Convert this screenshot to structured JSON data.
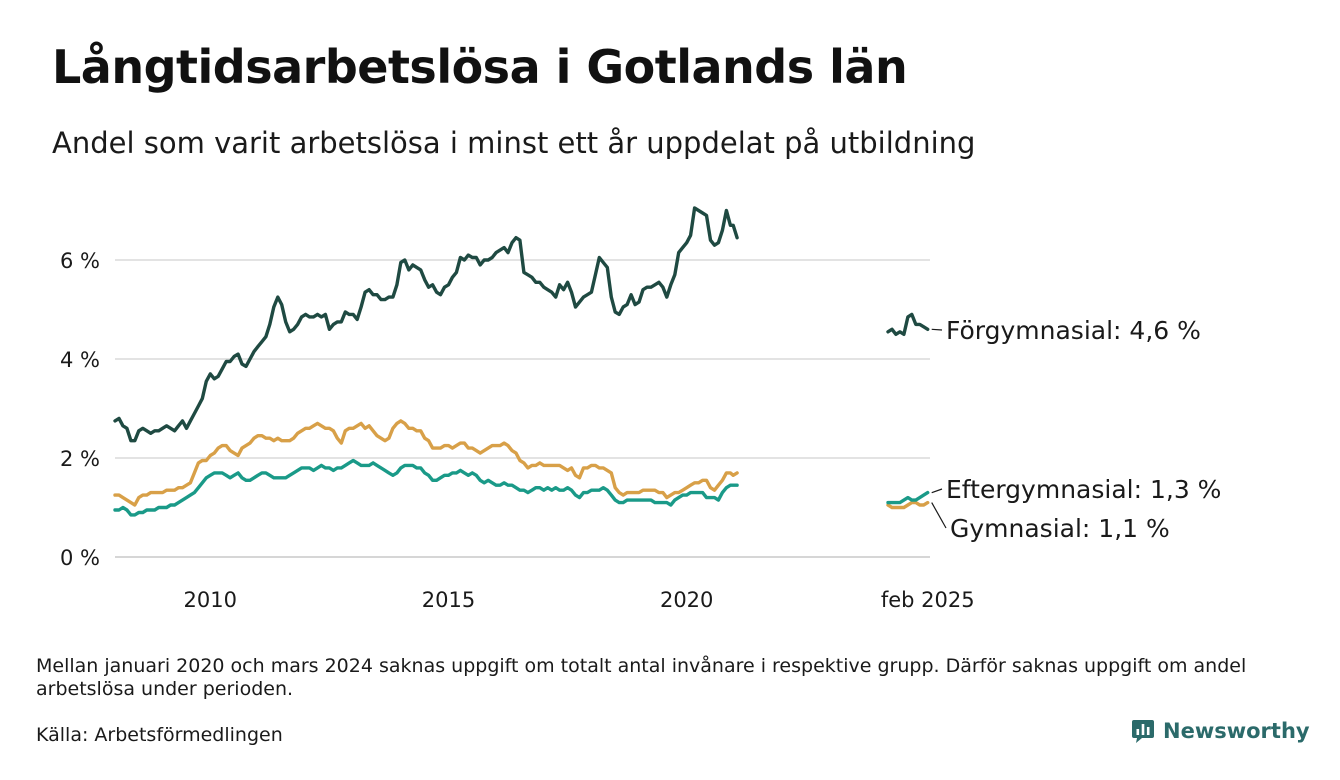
{
  "header": {
    "title": "Långtidsarbetslösa i Gotlands län",
    "subtitle": "Andel som varit arbetslösa i minst ett år uppdelat på utbildning"
  },
  "footer": {
    "note": "Mellan januari 2020 och mars 2024 saknas uppgift om totalt antal invånare i respektive grupp. Därför saknas uppgift om andel arbetslösa under perioden.",
    "source": "Källa: Arbetsförmedlingen",
    "brand": "Newsworthy"
  },
  "chart_data": {
    "type": "line",
    "y_unit": "%",
    "ylim": [
      0,
      7.2
    ],
    "y_ticks": [
      {
        "value": 0,
        "label": "0 %"
      },
      {
        "value": 2,
        "label": "2 %"
      },
      {
        "value": 4,
        "label": "4 %"
      },
      {
        "value": 6,
        "label": "6 %"
      }
    ],
    "x_ticks": [
      {
        "value": "2010-01",
        "label": "2010"
      },
      {
        "value": "2015-01",
        "label": "2015"
      },
      {
        "value": "2020-01",
        "label": "2020"
      },
      {
        "value": "2025-02",
        "label": "feb 2025"
      }
    ],
    "x_axis_segments": [
      {
        "from": "2008-01",
        "to": "2020-12"
      },
      {
        "from": "2024-04",
        "to": "2025-02"
      }
    ],
    "gridlines": true,
    "series": [
      {
        "name": "Förgymnasial",
        "end_label": "Förgymnasial: 4,6 %",
        "color": "#1f4a42",
        "segments": [
          {
            "start": "2008-01",
            "values": [
              2.75,
              2.8,
              2.65,
              2.6,
              2.35,
              2.35,
              2.55,
              2.6,
              2.55,
              2.5,
              2.55,
              2.55,
              2.6,
              2.65,
              2.6,
              2.55,
              2.65,
              2.75,
              2.6,
              2.75,
              2.9,
              3.05,
              3.2,
              3.55,
              3.7,
              3.6,
              3.65,
              3.8,
              3.95,
              3.95,
              4.05,
              4.1,
              3.9,
              3.85,
              4.0,
              4.15,
              4.25,
              4.35,
              4.45,
              4.7,
              5.05,
              5.25,
              5.1,
              4.75,
              4.55,
              4.6,
              4.7,
              4.85,
              4.9,
              4.85,
              4.85,
              4.9,
              4.85,
              4.9,
              4.6,
              4.7,
              4.75,
              4.75,
              4.95,
              4.9,
              4.9,
              4.8,
              5.05,
              5.35,
              5.4,
              5.3,
              5.3,
              5.2,
              5.2,
              5.25,
              5.25,
              5.5,
              5.95,
              6.0,
              5.8,
              5.9,
              5.85,
              5.8,
              5.6,
              5.45,
              5.5,
              5.35,
              5.3,
              5.45,
              5.5,
              5.65,
              5.75,
              6.05,
              6.0,
              6.1,
              6.05,
              6.05,
              5.9,
              6.0,
              6.0,
              6.05,
              6.15,
              6.2,
              6.25,
              6.15,
              6.35,
              6.45,
              6.4,
              5.75,
              5.7,
              5.65,
              5.55,
              5.55,
              5.45,
              5.4,
              5.35,
              5.25,
              5.5,
              5.4,
              5.55,
              5.35,
              5.05,
              5.15,
              5.25,
              5.3,
              5.35,
              5.7,
              6.05,
              5.95,
              5.85,
              5.25,
              4.95,
              4.9,
              5.05,
              5.1,
              5.3,
              5.1,
              5.15,
              5.4,
              5.45,
              5.45,
              5.5,
              5.55,
              5.45,
              5.25,
              5.5,
              5.7,
              6.15,
              6.25,
              6.35,
              6.5,
              7.05,
              7.0,
              6.95,
              6.9,
              6.4,
              6.3,
              6.35,
              6.6,
              7.0,
              6.7,
              6.7,
              6.45
            ]
          },
          {
            "start": "2024-04",
            "values": [
              4.55,
              4.6,
              4.5,
              4.55,
              4.5,
              4.85,
              4.9,
              4.7,
              4.7,
              4.65,
              4.6
            ]
          }
        ]
      },
      {
        "name": "Gymnasial",
        "end_label": "Gymnasial: 1,1 %",
        "color": "#d8a048",
        "segments": [
          {
            "start": "2008-01",
            "values": [
              1.25,
              1.25,
              1.2,
              1.15,
              1.1,
              1.05,
              1.2,
              1.25,
              1.25,
              1.3,
              1.3,
              1.3,
              1.3,
              1.35,
              1.35,
              1.35,
              1.4,
              1.4,
              1.45,
              1.5,
              1.7,
              1.9,
              1.95,
              1.95,
              2.05,
              2.1,
              2.2,
              2.25,
              2.25,
              2.15,
              2.1,
              2.05,
              2.2,
              2.25,
              2.3,
              2.4,
              2.45,
              2.45,
              2.4,
              2.4,
              2.35,
              2.4,
              2.35,
              2.35,
              2.35,
              2.4,
              2.5,
              2.55,
              2.6,
              2.6,
              2.65,
              2.7,
              2.65,
              2.6,
              2.6,
              2.55,
              2.4,
              2.3,
              2.55,
              2.6,
              2.6,
              2.65,
              2.7,
              2.6,
              2.65,
              2.55,
              2.45,
              2.4,
              2.35,
              2.4,
              2.6,
              2.7,
              2.75,
              2.7,
              2.6,
              2.6,
              2.55,
              2.55,
              2.4,
              2.35,
              2.2,
              2.2,
              2.2,
              2.25,
              2.25,
              2.2,
              2.25,
              2.3,
              2.3,
              2.2,
              2.2,
              2.15,
              2.1,
              2.15,
              2.2,
              2.25,
              2.25,
              2.25,
              2.3,
              2.25,
              2.15,
              2.1,
              1.95,
              1.9,
              1.8,
              1.85,
              1.85,
              1.9,
              1.85,
              1.85,
              1.85,
              1.85,
              1.85,
              1.8,
              1.75,
              1.8,
              1.65,
              1.6,
              1.8,
              1.8,
              1.85,
              1.85,
              1.8,
              1.8,
              1.75,
              1.7,
              1.4,
              1.3,
              1.25,
              1.3,
              1.3,
              1.3,
              1.3,
              1.35,
              1.35,
              1.35,
              1.35,
              1.3,
              1.3,
              1.2,
              1.25,
              1.3,
              1.3,
              1.35,
              1.4,
              1.45,
              1.5,
              1.5,
              1.55,
              1.55,
              1.4,
              1.35,
              1.45,
              1.55,
              1.7,
              1.7,
              1.65,
              1.7
            ]
          },
          {
            "start": "2024-04",
            "values": [
              1.05,
              1.0,
              1.0,
              1.0,
              1.0,
              1.05,
              1.1,
              1.1,
              1.05,
              1.05,
              1.1
            ]
          }
        ]
      },
      {
        "name": "Eftergymnasial",
        "end_label": "Eftergymnasial: 1,3 %",
        "color": "#1a9a88",
        "segments": [
          {
            "start": "2008-01",
            "values": [
              0.95,
              0.95,
              1.0,
              0.95,
              0.85,
              0.85,
              0.9,
              0.9,
              0.95,
              0.95,
              0.95,
              1.0,
              1.0,
              1.0,
              1.05,
              1.05,
              1.1,
              1.15,
              1.2,
              1.25,
              1.3,
              1.4,
              1.5,
              1.6,
              1.65,
              1.7,
              1.7,
              1.7,
              1.65,
              1.6,
              1.65,
              1.7,
              1.6,
              1.55,
              1.55,
              1.6,
              1.65,
              1.7,
              1.7,
              1.65,
              1.6,
              1.6,
              1.6,
              1.6,
              1.65,
              1.7,
              1.75,
              1.8,
              1.8,
              1.8,
              1.75,
              1.8,
              1.85,
              1.8,
              1.8,
              1.75,
              1.8,
              1.8,
              1.85,
              1.9,
              1.95,
              1.9,
              1.85,
              1.85,
              1.85,
              1.9,
              1.85,
              1.8,
              1.75,
              1.7,
              1.65,
              1.7,
              1.8,
              1.85,
              1.85,
              1.85,
              1.8,
              1.8,
              1.7,
              1.65,
              1.55,
              1.55,
              1.6,
              1.65,
              1.65,
              1.7,
              1.7,
              1.75,
              1.7,
              1.65,
              1.7,
              1.65,
              1.55,
              1.5,
              1.55,
              1.5,
              1.45,
              1.45,
              1.5,
              1.45,
              1.45,
              1.4,
              1.35,
              1.35,
              1.3,
              1.35,
              1.4,
              1.4,
              1.35,
              1.4,
              1.35,
              1.4,
              1.35,
              1.35,
              1.4,
              1.35,
              1.25,
              1.2,
              1.3,
              1.3,
              1.35,
              1.35,
              1.35,
              1.4,
              1.35,
              1.25,
              1.15,
              1.1,
              1.1,
              1.15,
              1.15,
              1.15,
              1.15,
              1.15,
              1.15,
              1.15,
              1.1,
              1.1,
              1.1,
              1.1,
              1.05,
              1.15,
              1.2,
              1.25,
              1.25,
              1.3,
              1.3,
              1.3,
              1.3,
              1.2,
              1.2,
              1.2,
              1.15,
              1.3,
              1.4,
              1.45,
              1.45,
              1.45
            ]
          },
          {
            "start": "2024-04",
            "values": [
              1.1,
              1.1,
              1.1,
              1.1,
              1.15,
              1.2,
              1.15,
              1.15,
              1.2,
              1.25,
              1.3
            ]
          }
        ]
      }
    ]
  }
}
